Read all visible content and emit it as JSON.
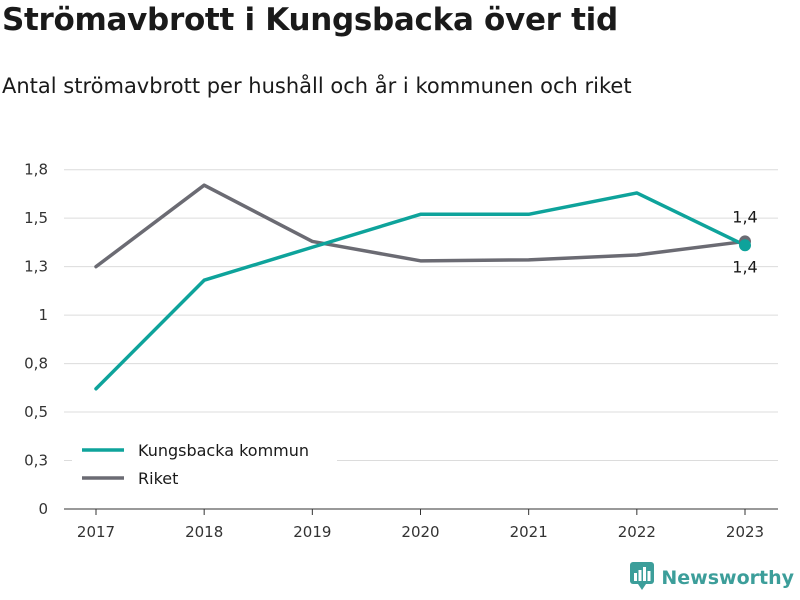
{
  "title": "Strömavbrott i Kungsbacka över tid",
  "subtitle": "Antal strömavbrott per hushåll och år i kommunen och riket",
  "brand": {
    "name": "Newsworthy",
    "icon": "bar-chart-logo-icon"
  },
  "colors": {
    "kungsbacka": "#0ea39b",
    "riket": "#6b6b73",
    "grid": "#dcdcdc",
    "brand": "#3c9e9a"
  },
  "chart_data": {
    "type": "line",
    "x": [
      "2017",
      "2018",
      "2019",
      "2020",
      "2021",
      "2022",
      "2023"
    ],
    "ylim": [
      0,
      1.8
    ],
    "y_ticks": [
      0,
      0.25,
      0.5,
      0.75,
      1.0,
      1.25,
      1.5,
      1.75
    ],
    "y_tick_labels": [
      "0",
      "0,3",
      "0,5",
      "0,8",
      "1",
      "1,3",
      "1,5",
      "1,8"
    ],
    "grid": true,
    "legend_position": "bottom-left",
    "series": [
      {
        "name": "Kungsbacka kommun",
        "color": "#0ea39b",
        "values": [
          0.62,
          1.18,
          1.35,
          1.52,
          1.52,
          1.63,
          1.36
        ],
        "end_label": "1,4"
      },
      {
        "name": "Riket",
        "color": "#6b6b73",
        "values": [
          1.25,
          1.67,
          1.38,
          1.28,
          1.285,
          1.31,
          1.38
        ],
        "end_label": "1,4"
      }
    ]
  }
}
